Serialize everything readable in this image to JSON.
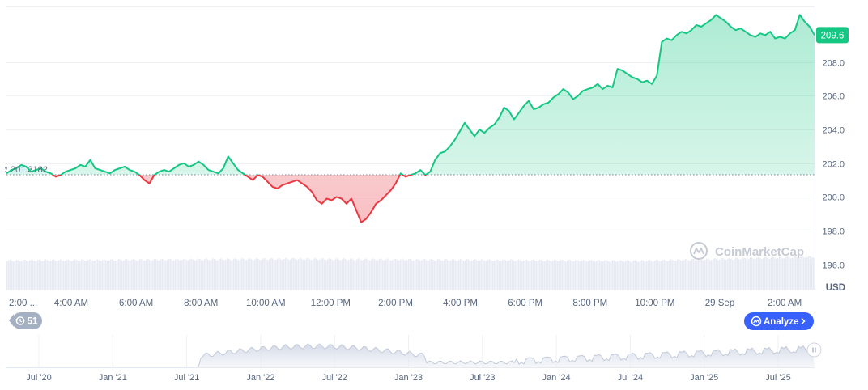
{
  "chart_data": {
    "type": "area",
    "currency": "USD",
    "reference_value": 201.3182,
    "reference_label": "201.3182",
    "current_value": 209.6,
    "current_label": "209.6",
    "y_ticks": [
      "196.0",
      "198.0",
      "200.0",
      "202.0",
      "204.0",
      "206.0",
      "208.0"
    ],
    "ylim": [
      194.5,
      211.3
    ],
    "x_tick_labels": [
      "2:00 ...",
      "4:00 AM",
      "6:00 AM",
      "8:00 AM",
      "10:00 AM",
      "12:00 PM",
      "2:00 PM",
      "4:00 PM",
      "6:00 PM",
      "8:00 PM",
      "10:00 PM",
      "29 Sep",
      "2:00 AM"
    ],
    "navigator_labels": [
      "Jul '20",
      "Jan '21",
      "Jul '21",
      "Jan '22",
      "Jul '22",
      "Jan '23",
      "Jul '23",
      "Jan '24",
      "Jul '24",
      "Jan '25",
      "Jul '25"
    ],
    "grid": true,
    "colors": {
      "up": "#16c784",
      "down": "#ea3943",
      "up_fill": "#16c784",
      "down_fill": "#ea3943",
      "price_tag": "#16c784",
      "analyze": "#3861fb",
      "history_badge": "#a6b0c3"
    },
    "series": [
      {
        "values": [
          201.4,
          201.6,
          201.7,
          201.9,
          201.8,
          201.5,
          201.6,
          201.7,
          201.5,
          201.4,
          201.2,
          201.3,
          201.5,
          201.6,
          201.7,
          201.9,
          201.8,
          202.2,
          201.7,
          201.6,
          201.5,
          201.4,
          201.6,
          201.7,
          201.8,
          201.6,
          201.5,
          201.3,
          201.0,
          200.8,
          201.3,
          201.5,
          201.6,
          201.5,
          201.7,
          201.9,
          202.0,
          201.8,
          201.9,
          202.1,
          201.9,
          201.6,
          201.5,
          201.4,
          201.7,
          202.4,
          202.0,
          201.6,
          201.4,
          201.2,
          201.0,
          201.3,
          201.2,
          200.9,
          200.6,
          200.5,
          200.7,
          200.8,
          200.9,
          201.0,
          200.8,
          200.6,
          200.3,
          199.8,
          199.6,
          199.9,
          199.8,
          200.0,
          199.9,
          199.6,
          199.9,
          199.2,
          198.5,
          198.7,
          199.1,
          199.6,
          199.8,
          200.1,
          200.4,
          200.8,
          201.4,
          201.2,
          201.3,
          201.4,
          201.6,
          201.3,
          201.5,
          202.2,
          202.6,
          202.7,
          203.0,
          203.4,
          203.9,
          204.4,
          204.0,
          203.6,
          204.0,
          203.8,
          204.1,
          204.3,
          204.7,
          205.3,
          205.1,
          204.6,
          205.0,
          205.4,
          205.7,
          205.2,
          205.3,
          205.5,
          205.6,
          205.9,
          206.1,
          206.4,
          206.2,
          205.8,
          206.0,
          206.3,
          206.4,
          206.5,
          206.7,
          206.4,
          206.6,
          206.5,
          207.6,
          207.5,
          207.3,
          207.1,
          207.0,
          206.8,
          206.9,
          206.7,
          207.2,
          209.2,
          209.4,
          209.3,
          209.6,
          209.8,
          209.7,
          209.9,
          210.2,
          210.1,
          210.3,
          210.5,
          210.8,
          210.6,
          210.4,
          210.1,
          209.9,
          210.0,
          209.8,
          209.6,
          209.5,
          209.7,
          209.6,
          209.8,
          209.4,
          209.5,
          209.4,
          209.7,
          209.9,
          210.8,
          210.4,
          210.1,
          209.6
        ],
        "style": "split-at-reference"
      }
    ],
    "volume_bars": true
  },
  "branding": {
    "watermark": "CoinMarketCap"
  },
  "controls": {
    "history_badge_value": "51",
    "analyze_label": "Analyze",
    "currency_label": "USD"
  }
}
